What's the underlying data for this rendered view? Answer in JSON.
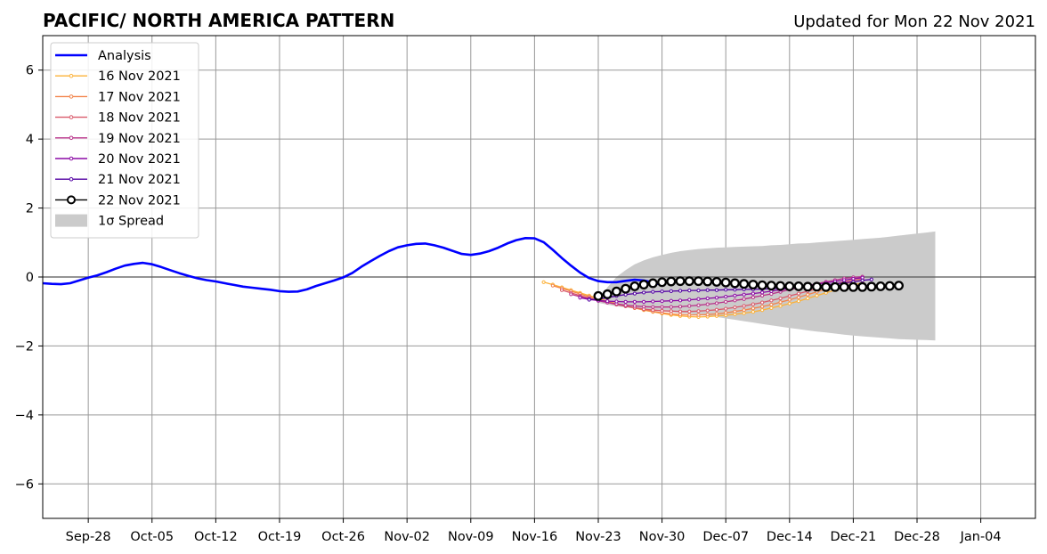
{
  "chart_data": {
    "type": "line",
    "title": "PACIFIC/ NORTH AMERICA PATTERN",
    "subtitle": "Updated for Mon 22 Nov 2021",
    "xlabel": "",
    "ylabel": "",
    "xlim": [
      "2021-09-23",
      "2022-01-10"
    ],
    "ylim": [
      -7,
      7
    ],
    "x_ticks": [
      "Sep-28",
      "Oct-05",
      "Oct-12",
      "Oct-19",
      "Oct-26",
      "Nov-02",
      "Nov-09",
      "Nov-16",
      "Nov-23",
      "Nov-30",
      "Dec-07",
      "Dec-14",
      "Dec-21",
      "Dec-28",
      "Jan-04"
    ],
    "x_tick_dates": [
      "2021-09-28",
      "2021-10-05",
      "2021-10-12",
      "2021-10-19",
      "2021-10-26",
      "2021-11-02",
      "2021-11-09",
      "2021-11-16",
      "2021-11-23",
      "2021-11-30",
      "2021-12-07",
      "2021-12-14",
      "2021-12-21",
      "2021-12-28",
      "2022-01-04"
    ],
    "y_ticks": [
      "−6",
      "−4",
      "−2",
      "0",
      "2",
      "4",
      "6"
    ],
    "y_tick_values": [
      -6,
      -4,
      -2,
      0,
      2,
      4,
      6
    ],
    "grid": true,
    "legend_position": "top-left",
    "legend_spread_label": "1σ Spread",
    "analysis": {
      "name": "Analysis",
      "color": "#0000ff",
      "start": "2021-09-23",
      "values": [
        -0.18,
        -0.2,
        -0.21,
        -0.18,
        -0.1,
        -0.02,
        0.05,
        0.14,
        0.24,
        0.33,
        0.38,
        0.41,
        0.37,
        0.29,
        0.2,
        0.11,
        0.03,
        -0.04,
        -0.09,
        -0.13,
        -0.18,
        -0.23,
        -0.28,
        -0.31,
        -0.34,
        -0.37,
        -0.41,
        -0.43,
        -0.42,
        -0.36,
        -0.26,
        -0.18,
        -0.1,
        -0.01,
        0.12,
        0.3,
        0.46,
        0.61,
        0.75,
        0.86,
        0.92,
        0.96,
        0.97,
        0.92,
        0.85,
        0.76,
        0.67,
        0.64,
        0.68,
        0.75,
        0.85,
        0.97,
        1.07,
        1.13,
        1.12,
        1.01,
        0.79,
        0.55,
        0.33,
        0.13,
        -0.03,
        -0.12,
        -0.15,
        -0.15,
        -0.11,
        -0.08,
        -0.1,
        -0.16,
        -0.23
      ]
    },
    "spread": {
      "name": "1σ Spread",
      "color": "#cbcbcb",
      "start": "2021-11-23",
      "upper": [
        -0.7,
        -0.3,
        0.0,
        0.2,
        0.37,
        0.48,
        0.57,
        0.64,
        0.7,
        0.75,
        0.78,
        0.81,
        0.83,
        0.85,
        0.86,
        0.87,
        0.88,
        0.89,
        0.9,
        0.92,
        0.93,
        0.95,
        0.97,
        0.98,
        1.0,
        1.02,
        1.04,
        1.06,
        1.08,
        1.1,
        1.12,
        1.14,
        1.17,
        1.2,
        1.23,
        1.26,
        1.29,
        1.32
      ],
      "lower": [
        -0.75,
        -0.8,
        -0.85,
        -0.88,
        -0.92,
        -0.95,
        -0.98,
        -1.0,
        -1.02,
        -1.05,
        -1.07,
        -1.1,
        -1.13,
        -1.16,
        -1.2,
        -1.24,
        -1.28,
        -1.32,
        -1.36,
        -1.4,
        -1.44,
        -1.48,
        -1.51,
        -1.55,
        -1.58,
        -1.61,
        -1.64,
        -1.67,
        -1.7,
        -1.72,
        -1.74,
        -1.76,
        -1.78,
        -1.8,
        -1.81,
        -1.82,
        -1.83,
        -1.84
      ]
    },
    "series": [
      {
        "name": "16 Nov 2021",
        "color": "#fcb239",
        "start": "2021-11-17",
        "values": [
          -0.15,
          -0.22,
          -0.3,
          -0.38,
          -0.46,
          -0.54,
          -0.62,
          -0.7,
          -0.77,
          -0.84,
          -0.9,
          -0.96,
          -1.01,
          -1.06,
          -1.1,
          -1.13,
          -1.15,
          -1.16,
          -1.15,
          -1.13,
          -1.11,
          -1.08,
          -1.05,
          -1.01,
          -0.96,
          -0.9,
          -0.84,
          -0.77,
          -0.7,
          -0.62,
          -0.54,
          -0.46,
          -0.38,
          -0.3,
          -0.23,
          -0.17
        ]
      },
      {
        "name": "17 Nov 2021",
        "color": "#f2844b",
        "start": "2021-11-18",
        "values": [
          -0.25,
          -0.33,
          -0.41,
          -0.49,
          -0.57,
          -0.64,
          -0.71,
          -0.78,
          -0.84,
          -0.9,
          -0.95,
          -1.0,
          -1.04,
          -1.07,
          -1.09,
          -1.1,
          -1.1,
          -1.09,
          -1.07,
          -1.04,
          -1.0,
          -0.96,
          -0.91,
          -0.86,
          -0.8,
          -0.73,
          -0.66,
          -0.59,
          -0.51,
          -0.43,
          -0.35,
          -0.27,
          -0.2,
          -0.14,
          -0.09
        ]
      },
      {
        "name": "18 Nov 2021",
        "color": "#d9596a",
        "start": "2021-11-19",
        "values": [
          -0.38,
          -0.46,
          -0.54,
          -0.61,
          -0.68,
          -0.74,
          -0.8,
          -0.85,
          -0.89,
          -0.93,
          -0.96,
          -0.98,
          -0.99,
          -1.0,
          -1.0,
          -0.99,
          -0.97,
          -0.95,
          -0.92,
          -0.88,
          -0.84,
          -0.79,
          -0.74,
          -0.68,
          -0.62,
          -0.55,
          -0.48,
          -0.41,
          -0.34,
          -0.27,
          -0.2,
          -0.14,
          -0.09,
          -0.05
        ]
      },
      {
        "name": "19 Nov 2021",
        "color": "#b83289",
        "start": "2021-11-20",
        "values": [
          -0.5,
          -0.57,
          -0.63,
          -0.69,
          -0.74,
          -0.78,
          -0.82,
          -0.84,
          -0.86,
          -0.87,
          -0.87,
          -0.87,
          -0.86,
          -0.84,
          -0.82,
          -0.79,
          -0.76,
          -0.72,
          -0.68,
          -0.64,
          -0.59,
          -0.54,
          -0.49,
          -0.43,
          -0.37,
          -0.31,
          -0.25,
          -0.19,
          -0.14,
          -0.09,
          -0.04,
          -0.01,
          0.01
        ]
      },
      {
        "name": "20 Nov 2021",
        "color": "#8b0aa5",
        "start": "2021-11-21",
        "values": [
          -0.6,
          -0.65,
          -0.68,
          -0.7,
          -0.71,
          -0.72,
          -0.72,
          -0.72,
          -0.71,
          -0.7,
          -0.69,
          -0.68,
          -0.66,
          -0.64,
          -0.62,
          -0.6,
          -0.57,
          -0.54,
          -0.51,
          -0.48,
          -0.45,
          -0.41,
          -0.37,
          -0.33,
          -0.29,
          -0.25,
          -0.21,
          -0.17,
          -0.13,
          -0.09,
          -0.05,
          -0.02
        ]
      },
      {
        "name": "21 Nov 2021",
        "color": "#5302a3",
        "start": "2021-11-22",
        "values": [
          -0.66,
          -0.64,
          -0.6,
          -0.55,
          -0.51,
          -0.48,
          -0.45,
          -0.43,
          -0.42,
          -0.41,
          -0.4,
          -0.39,
          -0.39,
          -0.38,
          -0.38,
          -0.37,
          -0.37,
          -0.36,
          -0.36,
          -0.35,
          -0.34,
          -0.33,
          -0.32,
          -0.3,
          -0.28,
          -0.26,
          -0.23,
          -0.2,
          -0.17,
          -0.14,
          -0.1,
          -0.07
        ]
      },
      {
        "name": "22 Nov 2021",
        "color": "#000000",
        "start": "2021-11-23",
        "values": [
          -0.55,
          -0.5,
          -0.42,
          -0.34,
          -0.27,
          -0.22,
          -0.18,
          -0.15,
          -0.13,
          -0.12,
          -0.12,
          -0.12,
          -0.13,
          -0.14,
          -0.16,
          -0.18,
          -0.2,
          -0.22,
          -0.24,
          -0.25,
          -0.26,
          -0.27,
          -0.27,
          -0.28,
          -0.28,
          -0.29,
          -0.29,
          -0.29,
          -0.29,
          -0.29,
          -0.28,
          -0.27,
          -0.26,
          -0.25
        ]
      }
    ]
  }
}
